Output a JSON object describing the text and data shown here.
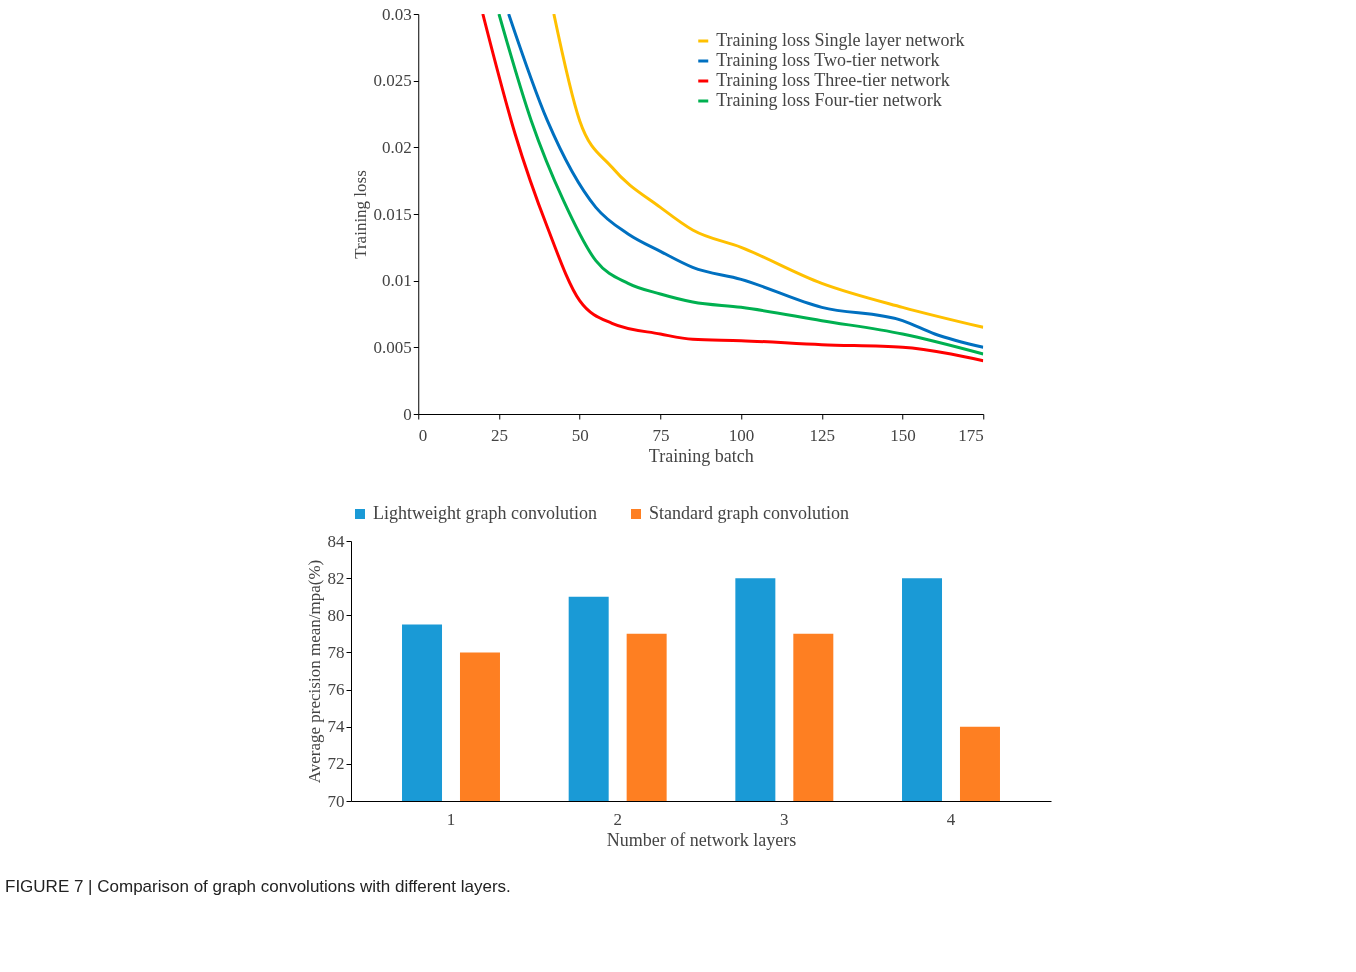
{
  "chart_data": [
    {
      "type": "line",
      "xlabel": "Training batch",
      "ylabel": "Training loss",
      "xlim": [
        0,
        175
      ],
      "xticks": [
        0,
        25,
        50,
        75,
        100,
        125,
        150,
        175
      ],
      "ylim": [
        0,
        0.03
      ],
      "yticks": [
        0,
        0.005,
        0.01,
        0.015,
        0.02,
        0.025,
        0.03
      ],
      "grid": false,
      "legend": "top right",
      "marker": "none",
      "line_style": "solid",
      "series": [
        {
          "name": "Training loss Single layer network",
          "color": "#ffc000",
          "x": [
            42,
            50,
            60,
            75,
            85,
            100,
            125,
            150,
            175
          ],
          "values": [
            0.03,
            0.022,
            0.0185,
            0.0155,
            0.0138,
            0.0125,
            0.0098,
            0.008,
            0.0065
          ]
        },
        {
          "name": "Training loss Two-tier network",
          "color": "#0070c0",
          "x": [
            28,
            40,
            55,
            65,
            75,
            85,
            100,
            125,
            150,
            160,
            175
          ],
          "values": [
            0.03,
            0.022,
            0.0155,
            0.0135,
            0.0122,
            0.011,
            0.0101,
            0.008,
            0.007,
            0.006,
            0.005
          ]
        },
        {
          "name": "Training loss Three-tier network",
          "color": "#ff0000",
          "x": [
            20,
            30,
            40,
            50,
            60,
            75,
            85,
            100,
            125,
            150,
            165,
            175
          ],
          "values": [
            0.03,
            0.021,
            0.014,
            0.0085,
            0.0068,
            0.006,
            0.0056,
            0.0055,
            0.0052,
            0.005,
            0.0045,
            0.004
          ]
        },
        {
          "name": "Training loss Four-tier network",
          "color": "#00b050",
          "x": [
            25,
            35,
            45,
            55,
            65,
            75,
            85,
            100,
            125,
            150,
            175
          ],
          "values": [
            0.03,
            0.022,
            0.016,
            0.0115,
            0.0098,
            0.009,
            0.0084,
            0.008,
            0.007,
            0.006,
            0.0045
          ]
        }
      ]
    },
    {
      "type": "bar",
      "xlabel": "Number of network layers",
      "ylabel": "Average precision mean/mpa(%)",
      "categories": [
        "1",
        "2",
        "3",
        "4"
      ],
      "ylim": [
        70,
        84
      ],
      "yticks": [
        70,
        72,
        74,
        76,
        78,
        80,
        82,
        84
      ],
      "grid": false,
      "legend": "top",
      "series": [
        {
          "name": "Lightweight graph convolution",
          "color": "#1a9ad6",
          "values": [
            79.5,
            81,
            82,
            82
          ]
        },
        {
          "name": "Standard graph convolution",
          "color": "#fe7f22",
          "values": [
            78,
            79,
            79,
            74
          ]
        }
      ],
      "annotations": [
        "FIGURE 7 | Comparison of graph convolutions with different layers."
      ]
    }
  ]
}
